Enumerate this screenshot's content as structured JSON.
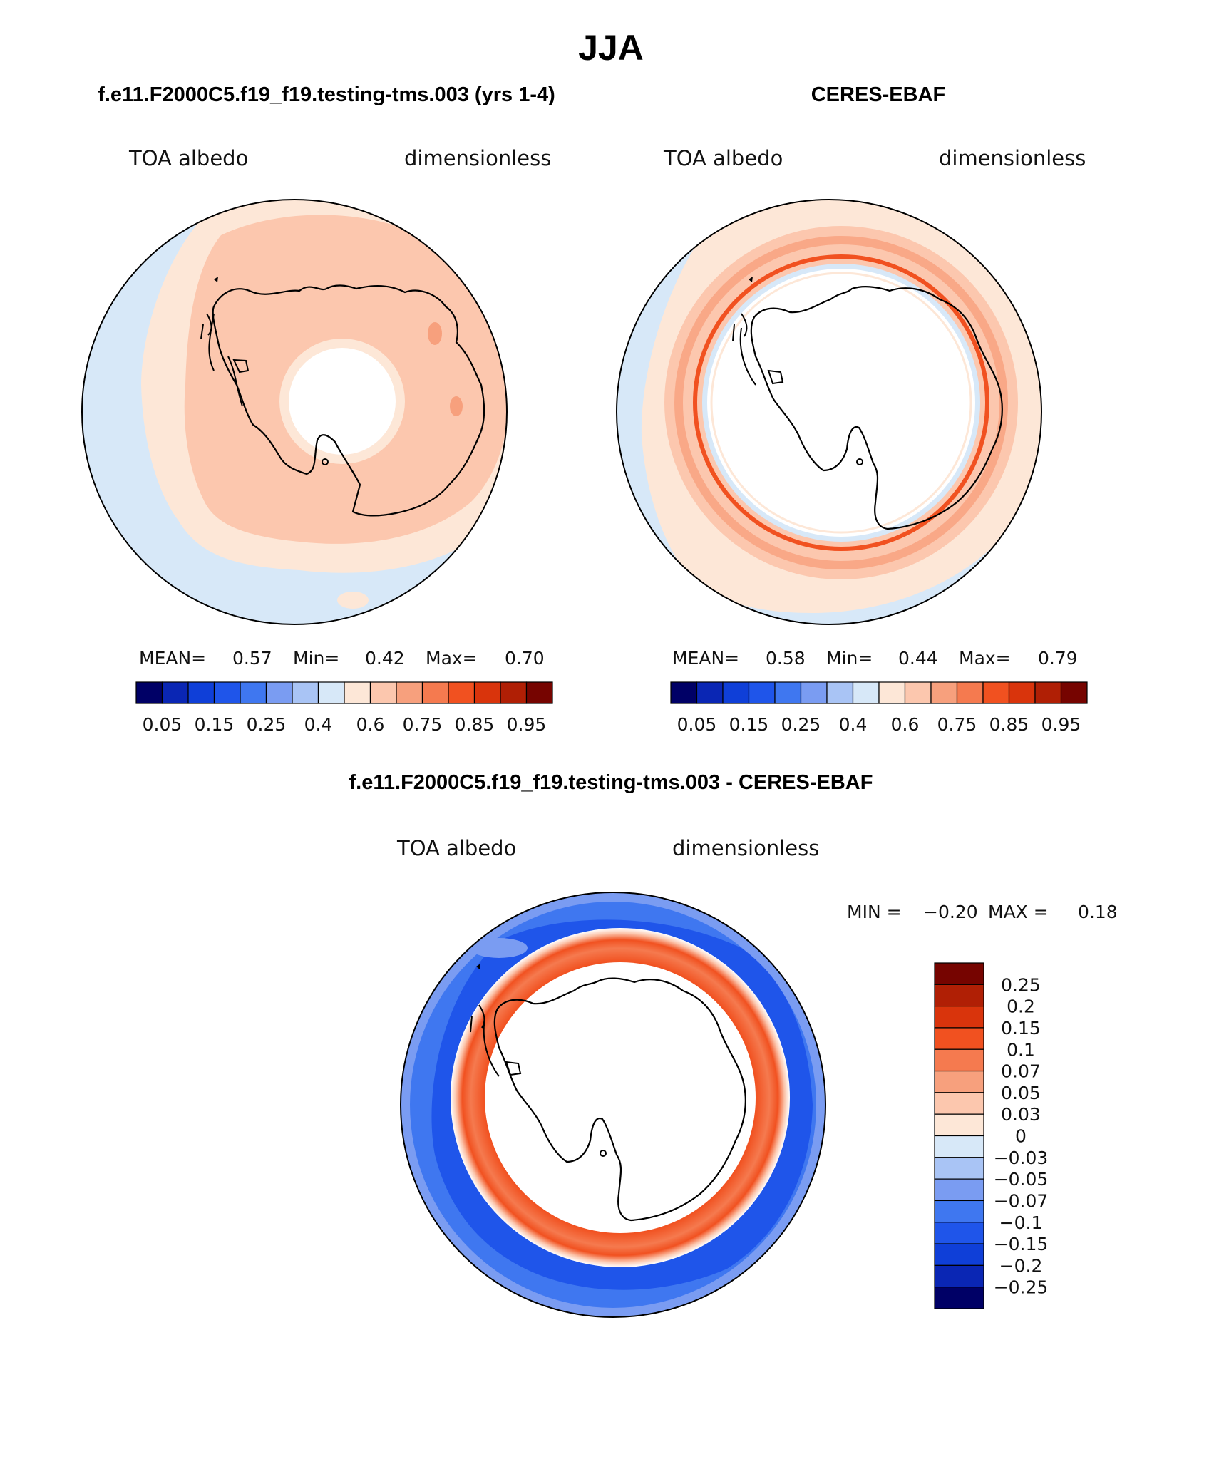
{
  "title": "JJA",
  "colors": {
    "scale": [
      "#000066",
      "#0a26b4",
      "#0f3fd8",
      "#1f55ea",
      "#3f77f0",
      "#7a9cf2",
      "#a9c4f5",
      "#d7e8f8",
      "#fde7d7",
      "#fcc7ae",
      "#f7a07d",
      "#f57a4f",
      "#f15120",
      "#d9340c",
      "#b01f05",
      "#760400"
    ],
    "diff_scale": [
      "#760400",
      "#b01f05",
      "#d9340c",
      "#f15120",
      "#f57a4f",
      "#f7a07d",
      "#fcc7ae",
      "#fde7d7",
      "#d7e8f8",
      "#a9c4f5",
      "#7a9cf2",
      "#3f77f0",
      "#1f55ea",
      "#0f3fd8",
      "#0a26b4",
      "#000066"
    ]
  },
  "panels": {
    "model": {
      "heading": "f.e11.F2000C5.f19_f19.testing-tms.003 (yrs 1-4)",
      "field": "TOA albedo",
      "units": "dimensionless",
      "stats": {
        "mean_label": "MEAN=",
        "mean": "0.57",
        "min_label": "Min=",
        "min": "0.42",
        "max_label": "Max=",
        "max": "0.70"
      },
      "colorbar_ticks": [
        "0.05",
        "0.15",
        "0.25",
        "0.4",
        "0.6",
        "0.75",
        "0.85",
        "0.95"
      ]
    },
    "obs": {
      "heading": "CERES-EBAF",
      "field": "TOA albedo",
      "units": "dimensionless",
      "stats": {
        "mean_label": "MEAN=",
        "mean": "0.58",
        "min_label": "Min=",
        "min": "0.44",
        "max_label": "Max=",
        "max": "0.79"
      },
      "colorbar_ticks": [
        "0.05",
        "0.15",
        "0.25",
        "0.4",
        "0.6",
        "0.75",
        "0.85",
        "0.95"
      ]
    },
    "diff": {
      "heading": "f.e11.F2000C5.f19_f19.testing-tms.003 - CERES-EBAF",
      "field": "TOA albedo",
      "units": "dimensionless",
      "stats": {
        "min_label": "MIN =",
        "min": "−0.20",
        "max_label": "MAX =",
        "max": "0.18"
      },
      "colorbar_ticks": [
        "0.25",
        "0.2",
        "0.15",
        "0.1",
        "0.07",
        "0.05",
        "0.03",
        "0",
        "−0.03",
        "−0.05",
        "−0.07",
        "−0.1",
        "−0.15",
        "−0.2",
        "−0.25"
      ]
    }
  }
}
